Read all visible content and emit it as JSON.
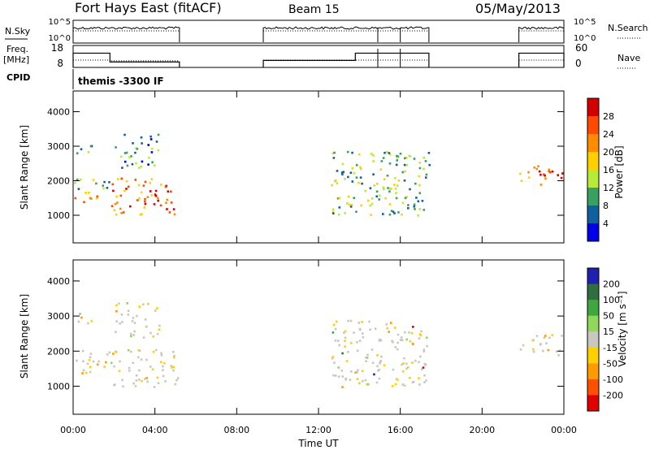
{
  "header": {
    "station": "Fort Hays East (fitACF)",
    "beam": "Beam 15",
    "date": "05/May/2013"
  },
  "side_labels": {
    "nsky": "N.Sky",
    "freq": "Freq.",
    "freq_unit": "[MHz]",
    "cpid": "CPID",
    "nsearch": "N.Search",
    "nave": "Nave"
  },
  "cpid_text": "themis -3300 IF",
  "chart_data": [
    {
      "id": "noise",
      "type": "line",
      "xlim": [
        0,
        24
      ],
      "log_scale": true,
      "left_ticks": [
        "10^5",
        "10^0"
      ],
      "right_ticks": [
        "10^5",
        "10^0"
      ],
      "active_segments": [
        [
          0,
          5.2
        ],
        [
          9.3,
          17.4
        ],
        [
          21.8,
          24
        ]
      ],
      "series": [
        {
          "name": "N.Sky",
          "style": "solid",
          "level": "high"
        },
        {
          "name": "N.Search",
          "style": "dotted",
          "level": "high"
        }
      ]
    },
    {
      "id": "freq_nave",
      "type": "line",
      "xlim": [
        0,
        24
      ],
      "left_ylim": [
        8,
        18
      ],
      "left_ticks": [
        "18",
        "8"
      ],
      "right_ylim": [
        0,
        60
      ],
      "right_ticks": [
        "60",
        "0"
      ],
      "series": [
        {
          "name": "Freq.",
          "style": "solid",
          "points": [
            [
              0,
              14.5
            ],
            [
              1.8,
              14.5
            ],
            [
              1.8,
              10.5
            ],
            [
              5.2,
              10.5
            ],
            [
              9.3,
              11.2
            ],
            [
              13.8,
              11.2
            ],
            [
              13.8,
              14.5
            ],
            [
              17.4,
              14.5
            ],
            [
              21.8,
              14.5
            ],
            [
              24,
              14.5
            ]
          ]
        },
        {
          "name": "Nave",
          "style": "dotted",
          "points": [
            [
              0,
              20
            ],
            [
              1.8,
              20
            ],
            [
              1.8,
              18
            ],
            [
              5.2,
              18
            ],
            [
              9.3,
              20
            ],
            [
              17.4,
              20
            ],
            [
              21.8,
              20
            ],
            [
              24,
              20
            ]
          ]
        }
      ]
    },
    {
      "id": "power",
      "type": "heatmap",
      "xlabel": "",
      "ylabel": "Slant Range [km]",
      "xlim": [
        0,
        24
      ],
      "ylim": [
        200,
        4600
      ],
      "yticks": [
        1000,
        2000,
        3000,
        4000
      ],
      "colorbar": {
        "label": "Power [dB]",
        "ticks": [
          "28",
          "24",
          "20",
          "16",
          "12",
          "8",
          "4"
        ],
        "colors": [
          "#d40000",
          "#ff4a00",
          "#ff8c00",
          "#ffd000",
          "#b8ea3a",
          "#38a060",
          "#1060a0",
          "#0000e8"
        ]
      },
      "features": [
        {
          "t": [
            0.0,
            1.8
          ],
          "r": [
            1400,
            1700
          ],
          "level": "high"
        },
        {
          "t": [
            0.0,
            1.8
          ],
          "r": [
            1700,
            2100
          ],
          "level": "mid"
        },
        {
          "t": [
            0.0,
            1.0
          ],
          "r": [
            2800,
            3100
          ],
          "level": "low"
        },
        {
          "t": [
            1.8,
            5.2
          ],
          "r": [
            1000,
            2100
          ],
          "level": "high"
        },
        {
          "t": [
            2.0,
            4.2
          ],
          "r": [
            2400,
            3400
          ],
          "level": "low"
        },
        {
          "t": [
            12.6,
            17.4
          ],
          "r": [
            1000,
            2900
          ],
          "level": "mid"
        },
        {
          "t": [
            21.8,
            24.0
          ],
          "r": [
            1900,
            2500
          ],
          "level": "high"
        }
      ]
    },
    {
      "id": "velocity",
      "type": "heatmap",
      "xlabel": "Time UT",
      "ylabel": "Slant Range [km]",
      "xlim": [
        0,
        24
      ],
      "ylim": [
        200,
        4600
      ],
      "yticks": [
        1000,
        2000,
        3000,
        4000
      ],
      "xticks": [
        "00:00",
        "04:00",
        "08:00",
        "12:00",
        "16:00",
        "20:00",
        "00:00"
      ],
      "colorbar": {
        "label": "Velocity [m s⁻¹]",
        "ticks": [
          "200",
          "100",
          "50",
          "15",
          "-15",
          "-50",
          "-100",
          "-200"
        ],
        "colors": [
          "#2020b0",
          "#2f6f3f",
          "#3ea83e",
          "#8fd85a",
          "#c8c8c0",
          "#ffd000",
          "#ff9a00",
          "#ff5000",
          "#e00000"
        ]
      }
    }
  ]
}
